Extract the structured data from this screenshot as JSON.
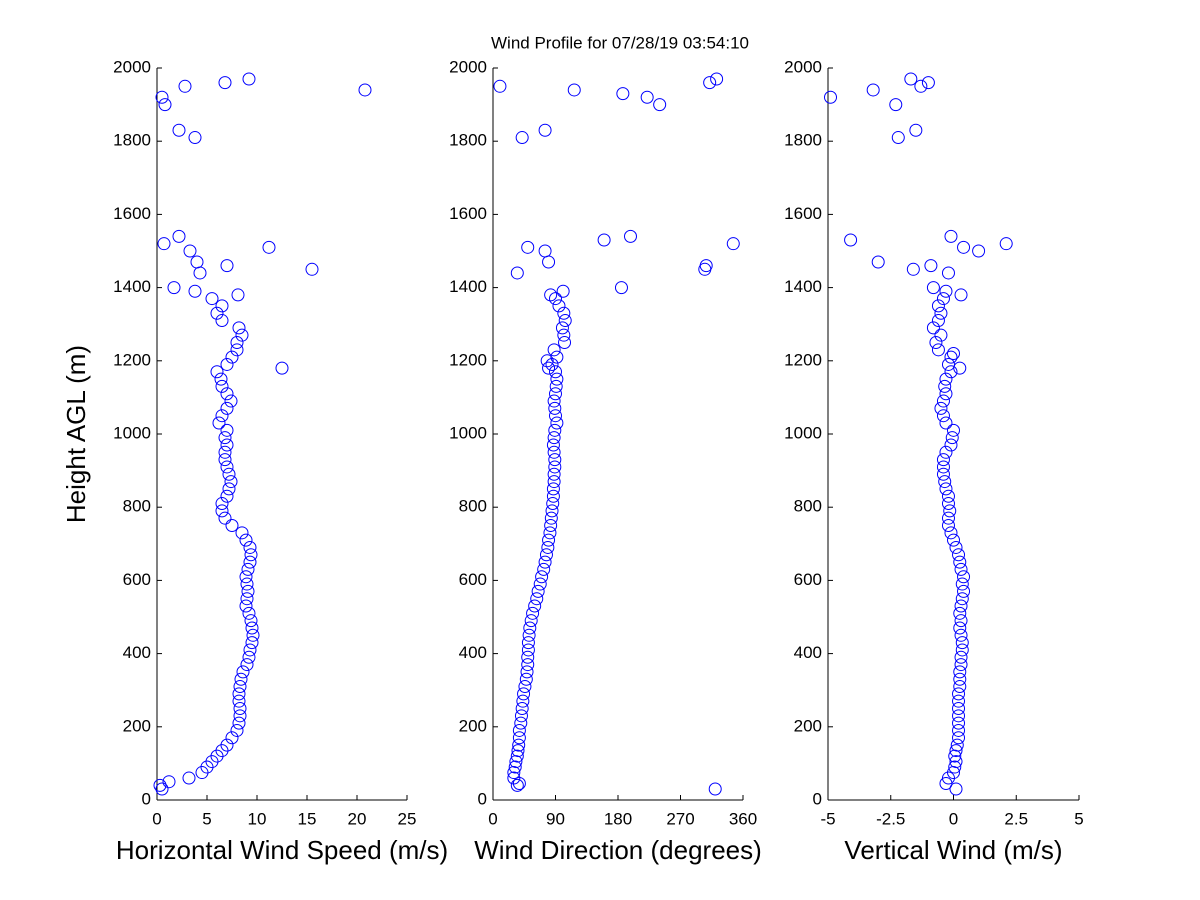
{
  "title": "Wind Profile for  07/28/19 03:54:10",
  "chart_data": [
    {
      "type": "scatter",
      "xlabel": "Horizontal Wind Speed (m/s)",
      "ylabel": "Height AGL (m)",
      "color": "#0000ff",
      "xlim": [
        0,
        25
      ],
      "xticks": [
        0,
        5,
        10,
        15,
        20,
        25
      ],
      "ylim": [
        0,
        2000
      ],
      "yticks": [
        0,
        200,
        400,
        600,
        800,
        1000,
        1200,
        1400,
        1600,
        1800,
        2000
      ],
      "x": [
        0.5,
        0.3,
        1.2,
        3.2,
        4.5,
        5,
        5.5,
        6,
        6.5,
        7,
        7.5,
        8,
        8.2,
        8.3,
        8.3,
        8.2,
        8.2,
        8.3,
        8.4,
        8.6,
        9,
        9.2,
        9.3,
        9.5,
        9.6,
        9.5,
        9.4,
        9.2,
        8.9,
        9,
        9.1,
        9,
        8.9,
        9.1,
        9.3,
        9.4,
        9.3,
        8.9,
        8.5,
        7.5,
        6.8,
        6.5,
        6.5,
        7,
        7.2,
        7.4,
        7.2,
        7,
        6.8,
        6.8,
        7,
        6.8,
        7,
        6.2,
        6.5,
        7,
        7.4,
        7,
        6.5,
        6.4,
        6,
        7,
        7.5,
        8,
        8,
        8.5,
        8.2,
        6.5,
        6,
        6.5,
        5.5,
        3.8,
        12.5,
        8.1,
        1.7,
        4.3,
        15.5,
        7,
        4,
        3.3,
        11.2,
        0.7,
        2.2,
        3.8,
        2.2,
        0.8,
        0.5,
        20.8,
        2.8,
        6.8,
        9.2
      ],
      "y": [
        30,
        40,
        50,
        60,
        75,
        90,
        105,
        120,
        135,
        150,
        170,
        190,
        210,
        230,
        250,
        270,
        290,
        310,
        330,
        350,
        370,
        390,
        410,
        430,
        450,
        470,
        490,
        510,
        530,
        550,
        570,
        590,
        610,
        630,
        650,
        670,
        690,
        710,
        730,
        750,
        770,
        790,
        810,
        830,
        850,
        870,
        890,
        910,
        930,
        950,
        970,
        990,
        1010,
        1030,
        1050,
        1070,
        1090,
        1110,
        1130,
        1150,
        1170,
        1190,
        1210,
        1230,
        1250,
        1270,
        1290,
        1310,
        1330,
        1350,
        1370,
        1390,
        1180,
        1380,
        1400,
        1440,
        1450,
        1460,
        1470,
        1500,
        1510,
        1520,
        1540,
        1810,
        1830,
        1900,
        1920,
        1940,
        1950,
        1960,
        1970
      ]
    },
    {
      "type": "scatter",
      "xlabel": "Wind Direction (degrees)",
      "color": "#0000ff",
      "xlim": [
        0,
        360
      ],
      "xticks": [
        0,
        90,
        180,
        270,
        360
      ],
      "ylim": [
        0,
        2000
      ],
      "yticks": [
        0,
        200,
        400,
        600,
        800,
        1000,
        1200,
        1400,
        1600,
        1800,
        2000
      ],
      "x": [
        35,
        38,
        30,
        30,
        32,
        33,
        35,
        36,
        37,
        38,
        38,
        40,
        41,
        42,
        43,
        44,
        46,
        48,
        49,
        50,
        50,
        51,
        51,
        52,
        53,
        55,
        57,
        60,
        63,
        65,
        68,
        70,
        73,
        75,
        77,
        79,
        80,
        82,
        83,
        84,
        85,
        86,
        87,
        87,
        88,
        88,
        89,
        89,
        88,
        87,
        88,
        89,
        92,
        90,
        89,
        88,
        90,
        91,
        92,
        90,
        85,
        92,
        88,
        103,
        102,
        100,
        104,
        102,
        95,
        90,
        101,
        320,
        80,
        78,
        83,
        185,
        35,
        305,
        307,
        80,
        75,
        50,
        346,
        160,
        198,
        42,
        75,
        240,
        222,
        187,
        117,
        10,
        312,
        322
      ],
      "y": [
        40,
        45,
        60,
        75,
        90,
        105,
        120,
        135,
        150,
        170,
        190,
        210,
        230,
        250,
        270,
        290,
        310,
        330,
        350,
        370,
        390,
        410,
        430,
        450,
        470,
        490,
        510,
        530,
        550,
        570,
        590,
        610,
        630,
        650,
        670,
        690,
        710,
        730,
        750,
        770,
        790,
        810,
        830,
        850,
        870,
        890,
        910,
        930,
        950,
        970,
        990,
        1010,
        1030,
        1050,
        1070,
        1090,
        1110,
        1130,
        1150,
        1170,
        1190,
        1210,
        1230,
        1250,
        1270,
        1290,
        1310,
        1330,
        1350,
        1370,
        1390,
        30,
        1180,
        1200,
        1380,
        1400,
        1440,
        1450,
        1460,
        1470,
        1500,
        1510,
        1520,
        1530,
        1540,
        1810,
        1830,
        1900,
        1920,
        1930,
        1940,
        1950,
        1960,
        1970
      ]
    },
    {
      "type": "scatter",
      "xlabel": "Vertical Wind (m/s)",
      "color": "#0000ff",
      "xlim": [
        -5,
        5
      ],
      "xticks": [
        -5,
        -2.5,
        0,
        2.5,
        5
      ],
      "ylim": [
        0,
        2000
      ],
      "yticks": [
        0,
        200,
        400,
        600,
        800,
        1000,
        1200,
        1400,
        1600,
        1800,
        2000
      ],
      "x": [
        0.1,
        -0.3,
        -0.2,
        0,
        0.05,
        0.1,
        0.05,
        0.1,
        0.15,
        0.2,
        0.2,
        0.2,
        0.2,
        0.2,
        0.2,
        0.2,
        0.25,
        0.25,
        0.25,
        0.3,
        0.3,
        0.35,
        0.35,
        0.3,
        0.25,
        0.3,
        0.25,
        0.3,
        0.35,
        0.4,
        0.35,
        0.4,
        0.3,
        0.25,
        0.2,
        0.1,
        0,
        -0.1,
        -0.2,
        -0.2,
        -0.15,
        -0.2,
        -0.2,
        -0.3,
        -0.35,
        -0.4,
        -0.4,
        -0.4,
        -0.3,
        -0.1,
        -0.05,
        0,
        -0.3,
        -0.4,
        -0.5,
        -0.4,
        -0.3,
        -0.35,
        -0.3,
        -0.1,
        -0.2,
        -0.1,
        -0.6,
        -0.7,
        -0.5,
        -0.8,
        -0.6,
        -0.5,
        -0.6,
        -0.4,
        -0.3,
        0.25,
        0,
        0.3,
        -0.8,
        -0.2,
        -1.6,
        -0.9,
        -3,
        1,
        0.4,
        2.1,
        -4.1,
        -0.1,
        -2.2,
        -1.5,
        -2.3,
        -4.9,
        -3.2,
        -1.3,
        -1,
        -1.7
      ],
      "y": [
        30,
        45,
        60,
        75,
        90,
        105,
        120,
        135,
        150,
        170,
        190,
        210,
        230,
        250,
        270,
        290,
        310,
        330,
        350,
        370,
        390,
        410,
        430,
        450,
        470,
        490,
        510,
        530,
        550,
        570,
        590,
        610,
        630,
        650,
        670,
        690,
        710,
        730,
        750,
        770,
        790,
        810,
        830,
        850,
        870,
        890,
        910,
        930,
        950,
        970,
        990,
        1010,
        1030,
        1050,
        1070,
        1090,
        1110,
        1130,
        1150,
        1170,
        1190,
        1210,
        1230,
        1250,
        1270,
        1290,
        1310,
        1330,
        1350,
        1370,
        1390,
        1180,
        1220,
        1380,
        1400,
        1440,
        1450,
        1460,
        1470,
        1500,
        1510,
        1520,
        1530,
        1540,
        1810,
        1830,
        1900,
        1920,
        1940,
        1950,
        1960,
        1970
      ]
    }
  ]
}
